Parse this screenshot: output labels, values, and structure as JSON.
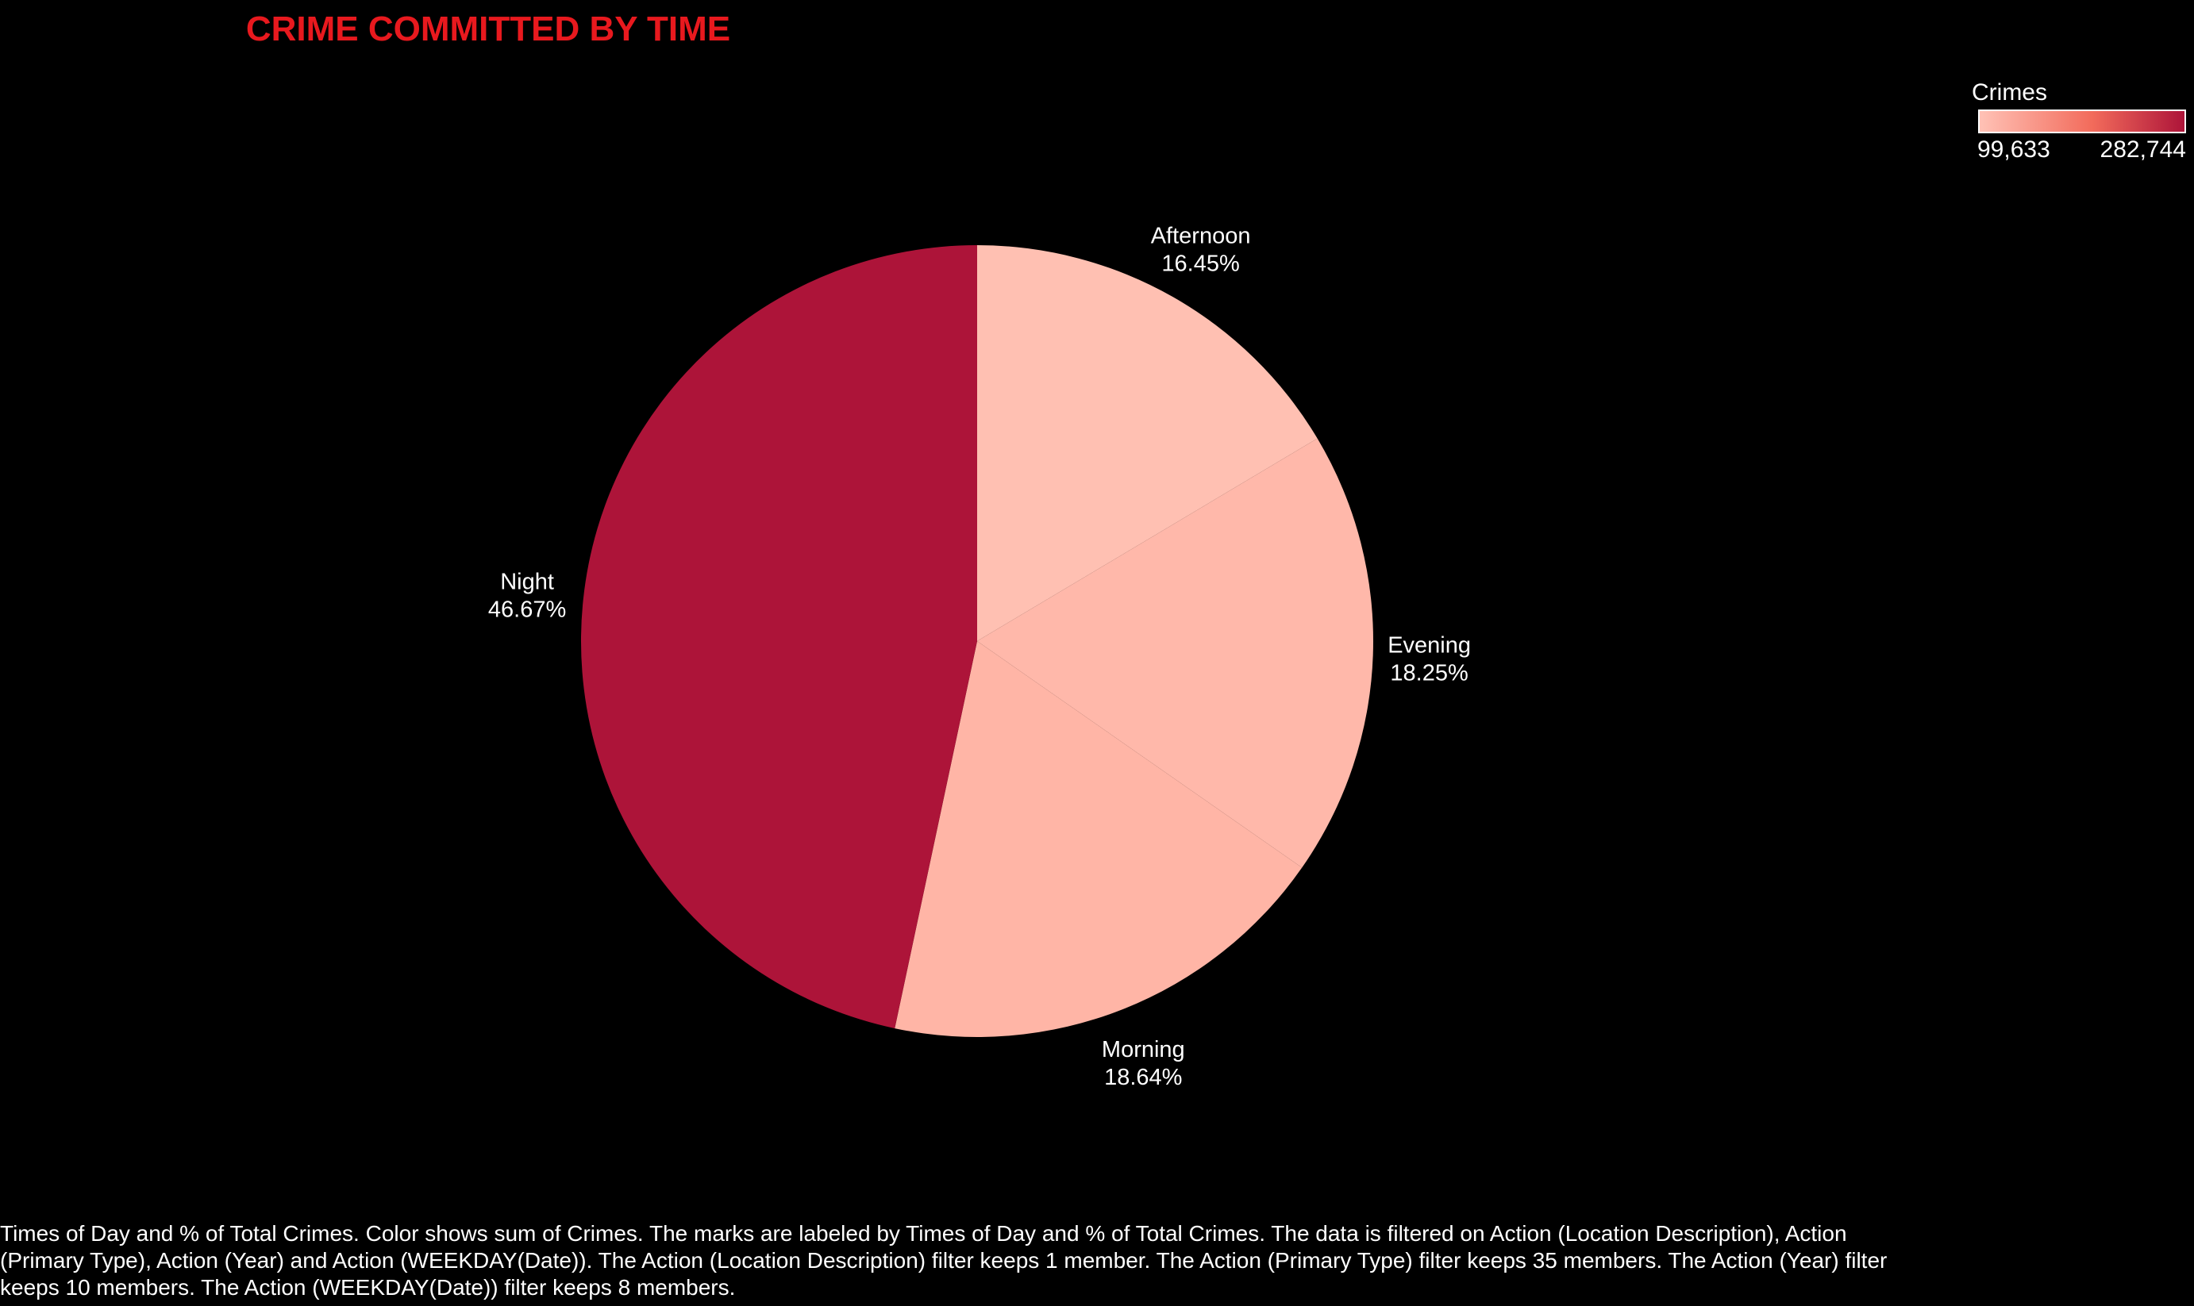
{
  "title": "CRIME COMMITTED BY TIME",
  "legend": {
    "title": "Crimes",
    "min_label": "99,633",
    "max_label": "282,744",
    "color_low": "#ffc2b6",
    "color_mid": "#f26b5b",
    "color_high": "#ad1439"
  },
  "chart_data": {
    "type": "pie",
    "categories": [
      "Afternoon",
      "Evening",
      "Morning",
      "Night"
    ],
    "values": [
      16.45,
      18.25,
      18.64,
      46.67
    ],
    "labels": [
      "16.45%",
      "18.25%",
      "18.64%",
      "46.67%"
    ],
    "colors": [
      "#ffc0b2",
      "#ffb8aa",
      "#ffb5a6",
      "#ad1439"
    ],
    "color_scale_min": 99633,
    "color_scale_max": 282744,
    "legend_position": "top-right"
  },
  "caption": "Times of Day and % of Total Crimes.  Color shows sum of Crimes.  The marks are labeled by Times of Day and % of Total Crimes. The data is filtered on Action (Location Description), Action (Primary Type), Action (Year) and Action (WEEKDAY(Date)). The Action (Location Description) filter keeps 1 member. The Action (Primary Type) filter keeps 35 members. The Action (Year) filter keeps 10 members. The Action (WEEKDAY(Date)) filter keeps 8 members."
}
